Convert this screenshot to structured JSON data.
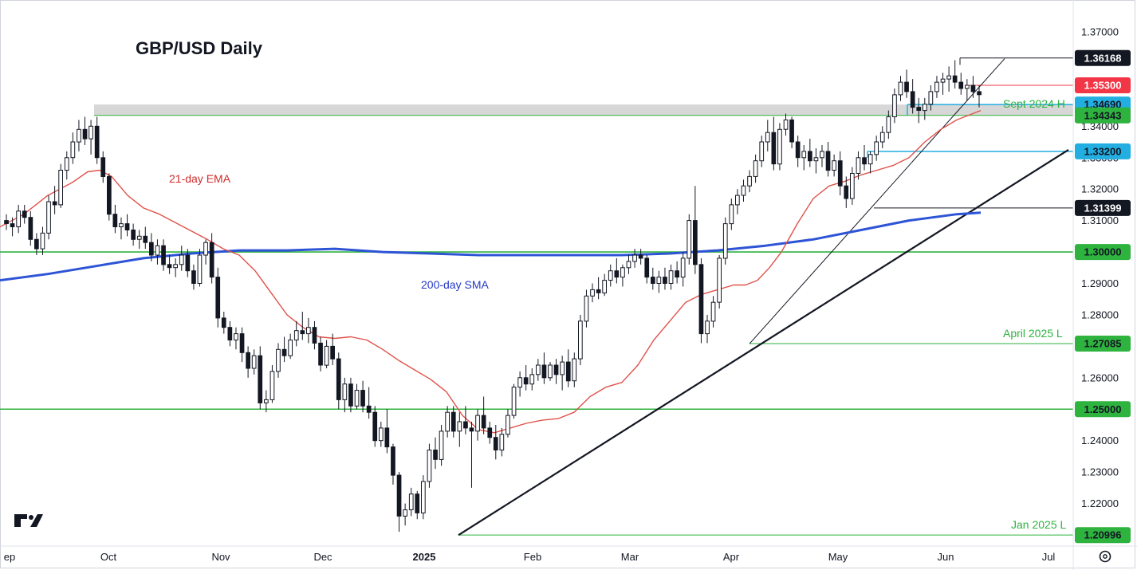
{
  "chart_data": {
    "type": "candlestick",
    "title": "GBP/USD Daily",
    "x_axis_labels": [
      "ep",
      "Oct",
      "Nov",
      "Dec",
      "2025",
      "Feb",
      "Mar",
      "Apr",
      "May",
      "Jun",
      "Jul"
    ],
    "y_axis_ticks": [
      "1.37000",
      "1.34000",
      "1.33000",
      "1.32000",
      "1.31000",
      "1.29000",
      "1.28000",
      "1.26000",
      "1.24000",
      "1.23000",
      "1.22000"
    ],
    "ylim": [
      1.2045,
      1.3735
    ],
    "series": [
      {
        "name": "21-day EMA",
        "color": "#e0524a"
      },
      {
        "name": "200-day SMA",
        "color": "#2e54d6"
      }
    ],
    "ema_points": [
      [
        0,
        1.308
      ],
      [
        30,
        1.312
      ],
      [
        60,
        1.318
      ],
      [
        90,
        1.322
      ],
      [
        110,
        1.3255
      ],
      [
        125,
        1.326
      ],
      [
        140,
        1.324
      ],
      [
        160,
        1.318
      ],
      [
        180,
        1.314
      ],
      [
        200,
        1.312
      ],
      [
        230,
        1.308
      ],
      [
        260,
        1.304
      ],
      [
        280,
        1.301
      ],
      [
        300,
        1.299
      ],
      [
        320,
        1.294
      ],
      [
        340,
        1.287
      ],
      [
        360,
        1.28
      ],
      [
        380,
        1.276
      ],
      [
        400,
        1.273
      ],
      [
        420,
        1.2725
      ],
      [
        440,
        1.273
      ],
      [
        460,
        1.272
      ],
      [
        480,
        1.269
      ],
      [
        500,
        1.2655
      ],
      [
        520,
        1.2625
      ],
      [
        540,
        1.2595
      ],
      [
        560,
        1.2555
      ],
      [
        580,
        1.248
      ],
      [
        600,
        1.2435
      ],
      [
        620,
        1.2425
      ],
      [
        640,
        1.244
      ],
      [
        660,
        1.2455
      ],
      [
        680,
        1.2465
      ],
      [
        700,
        1.247
      ],
      [
        720,
        1.249
      ],
      [
        740,
        1.254
      ],
      [
        760,
        1.257
      ],
      [
        780,
        1.2585
      ],
      [
        800,
        1.264
      ],
      [
        820,
        1.272
      ],
      [
        840,
        1.278
      ],
      [
        860,
        1.284
      ],
      [
        880,
        1.2865
      ],
      [
        900,
        1.288
      ],
      [
        920,
        1.2895
      ],
      [
        935,
        1.2895
      ],
      [
        950,
        1.291
      ],
      [
        965,
        1.295
      ],
      [
        980,
        1.3
      ],
      [
        1000,
        1.309
      ],
      [
        1020,
        1.317
      ],
      [
        1040,
        1.321
      ],
      [
        1060,
        1.3225
      ],
      [
        1080,
        1.3245
      ],
      [
        1100,
        1.326
      ],
      [
        1120,
        1.3275
      ],
      [
        1140,
        1.33
      ],
      [
        1160,
        1.335
      ],
      [
        1180,
        1.339
      ],
      [
        1200,
        1.342
      ],
      [
        1215,
        1.3435
      ],
      [
        1230,
        1.345
      ]
    ],
    "sma_points": [
      [
        0,
        1.291
      ],
      [
        60,
        1.293
      ],
      [
        120,
        1.2955
      ],
      [
        180,
        1.298
      ],
      [
        240,
        1.2995
      ],
      [
        300,
        1.3005
      ],
      [
        360,
        1.3005
      ],
      [
        420,
        1.301
      ],
      [
        480,
        1.3
      ],
      [
        540,
        1.2995
      ],
      [
        600,
        1.299
      ],
      [
        660,
        1.299
      ],
      [
        720,
        1.299
      ],
      [
        780,
        1.299
      ],
      [
        840,
        1.2995
      ],
      [
        900,
        1.3005
      ],
      [
        960,
        1.302
      ],
      [
        1020,
        1.304
      ],
      [
        1080,
        1.307
      ],
      [
        1140,
        1.31
      ],
      [
        1200,
        1.312
      ],
      [
        1230,
        1.3125
      ]
    ],
    "candles": [
      [
        1.31,
        1.312,
        1.307,
        1.309
      ],
      [
        1.309,
        1.311,
        1.305,
        1.308
      ],
      [
        1.308,
        1.315,
        1.306,
        1.313
      ],
      [
        1.313,
        1.315,
        1.309,
        1.311
      ],
      [
        1.311,
        1.313,
        1.302,
        1.304
      ],
      [
        1.304,
        1.306,
        1.299,
        1.301
      ],
      [
        1.301,
        1.308,
        1.299,
        1.306
      ],
      [
        1.306,
        1.318,
        1.304,
        1.316
      ],
      [
        1.316,
        1.321,
        1.312,
        1.315
      ],
      [
        1.315,
        1.328,
        1.314,
        1.326
      ],
      [
        1.326,
        1.332,
        1.323,
        1.33
      ],
      [
        1.33,
        1.338,
        1.328,
        1.335
      ],
      [
        1.335,
        1.342,
        1.332,
        1.339
      ],
      [
        1.339,
        1.343,
        1.334,
        1.336
      ],
      [
        1.336,
        1.342,
        1.331,
        1.34
      ],
      [
        1.34,
        1.343,
        1.328,
        1.33
      ],
      [
        1.33,
        1.332,
        1.322,
        1.324
      ],
      [
        1.324,
        1.325,
        1.31,
        1.312
      ],
      [
        1.312,
        1.315,
        1.306,
        1.308
      ],
      [
        1.308,
        1.311,
        1.304,
        1.309
      ],
      [
        1.309,
        1.312,
        1.305,
        1.307
      ],
      [
        1.307,
        1.309,
        1.302,
        1.304
      ],
      [
        1.304,
        1.307,
        1.301,
        1.305
      ],
      [
        1.305,
        1.308,
        1.301,
        1.303
      ],
      [
        1.303,
        1.306,
        1.297,
        1.299
      ],
      [
        1.299,
        1.304,
        1.296,
        1.302
      ],
      [
        1.302,
        1.304,
        1.294,
        1.296
      ],
      [
        1.296,
        1.299,
        1.293,
        1.295
      ],
      [
        1.295,
        1.298,
        1.292,
        1.296
      ],
      [
        1.296,
        1.302,
        1.294,
        1.299
      ],
      [
        1.299,
        1.301,
        1.292,
        1.294
      ],
      [
        1.294,
        1.296,
        1.288,
        1.29
      ],
      [
        1.29,
        1.301,
        1.289,
        1.299
      ],
      [
        1.299,
        1.304,
        1.296,
        1.303
      ],
      [
        1.303,
        1.306,
        1.29,
        1.292
      ],
      [
        1.292,
        1.295,
        1.276,
        1.279
      ],
      [
        1.279,
        1.281,
        1.274,
        1.276
      ],
      [
        1.276,
        1.278,
        1.27,
        1.272
      ],
      [
        1.272,
        1.276,
        1.269,
        1.274
      ],
      [
        1.274,
        1.276,
        1.265,
        1.268
      ],
      [
        1.268,
        1.27,
        1.26,
        1.263
      ],
      [
        1.263,
        1.269,
        1.261,
        1.267
      ],
      [
        1.267,
        1.27,
        1.25,
        1.252
      ],
      [
        1.252,
        1.256,
        1.249,
        1.253
      ],
      [
        1.253,
        1.264,
        1.252,
        1.262
      ],
      [
        1.262,
        1.271,
        1.26,
        1.269
      ],
      [
        1.269,
        1.273,
        1.265,
        1.267
      ],
      [
        1.267,
        1.274,
        1.266,
        1.272
      ],
      [
        1.272,
        1.278,
        1.27,
        1.275
      ],
      [
        1.275,
        1.281,
        1.272,
        1.274
      ],
      [
        1.274,
        1.279,
        1.271,
        1.276
      ],
      [
        1.276,
        1.278,
        1.269,
        1.271
      ],
      [
        1.271,
        1.273,
        1.262,
        1.264
      ],
      [
        1.264,
        1.272,
        1.263,
        1.27
      ],
      [
        1.27,
        1.274,
        1.264,
        1.266
      ],
      [
        1.266,
        1.268,
        1.25,
        1.253
      ],
      [
        1.253,
        1.26,
        1.249,
        1.258
      ],
      [
        1.258,
        1.26,
        1.249,
        1.251
      ],
      [
        1.251,
        1.258,
        1.25,
        1.256
      ],
      [
        1.256,
        1.259,
        1.249,
        1.251
      ],
      [
        1.251,
        1.257,
        1.247,
        1.249
      ],
      [
        1.249,
        1.251,
        1.238,
        1.24
      ],
      [
        1.24,
        1.246,
        1.238,
        1.244
      ],
      [
        1.244,
        1.25,
        1.236,
        1.238
      ],
      [
        1.238,
        1.239,
        1.226,
        1.229
      ],
      [
        1.229,
        1.23,
        1.211,
        1.216
      ],
      [
        1.216,
        1.22,
        1.213,
        1.218
      ],
      [
        1.218,
        1.225,
        1.216,
        1.223
      ],
      [
        1.223,
        1.224,
        1.215,
        1.217
      ],
      [
        1.217,
        1.229,
        1.215,
        1.227
      ],
      [
        1.227,
        1.239,
        1.225,
        1.237
      ],
      [
        1.237,
        1.241,
        1.231,
        1.234
      ],
      [
        1.234,
        1.245,
        1.232,
        1.243
      ],
      [
        1.243,
        1.251,
        1.241,
        1.249
      ],
      [
        1.249,
        1.251,
        1.241,
        1.243
      ],
      [
        1.243,
        1.249,
        1.238,
        1.246
      ],
      [
        1.246,
        1.251,
        1.242,
        1.244
      ],
      [
        1.244,
        1.246,
        1.225,
        1.243
      ],
      [
        1.243,
        1.25,
        1.24,
        1.248
      ],
      [
        1.248,
        1.254,
        1.242,
        1.244
      ],
      [
        1.244,
        1.246,
        1.239,
        1.241
      ],
      [
        1.241,
        1.245,
        1.234,
        1.237
      ],
      [
        1.237,
        1.244,
        1.235,
        1.242
      ],
      [
        1.242,
        1.25,
        1.241,
        1.248
      ],
      [
        1.248,
        1.258,
        1.247,
        1.257
      ],
      [
        1.257,
        1.262,
        1.254,
        1.26
      ],
      [
        1.26,
        1.264,
        1.256,
        1.258
      ],
      [
        1.258,
        1.263,
        1.256,
        1.261
      ],
      [
        1.261,
        1.266,
        1.259,
        1.264
      ],
      [
        1.264,
        1.268,
        1.258,
        1.26
      ],
      [
        1.26,
        1.265,
        1.259,
        1.264
      ],
      [
        1.264,
        1.266,
        1.258,
        1.261
      ],
      [
        1.261,
        1.267,
        1.256,
        1.265
      ],
      [
        1.265,
        1.269,
        1.257,
        1.259
      ],
      [
        1.259,
        1.268,
        1.257,
        1.266
      ],
      [
        1.266,
        1.28,
        1.264,
        1.278
      ],
      [
        1.278,
        1.288,
        1.276,
        1.286
      ],
      [
        1.286,
        1.29,
        1.284,
        1.288
      ],
      [
        1.288,
        1.292,
        1.285,
        1.287
      ],
      [
        1.287,
        1.293,
        1.286,
        1.291
      ],
      [
        1.291,
        1.296,
        1.289,
        1.294
      ],
      [
        1.294,
        1.298,
        1.29,
        1.292
      ],
      [
        1.292,
        1.296,
        1.289,
        1.295
      ],
      [
        1.295,
        1.299,
        1.293,
        1.297
      ],
      [
        1.297,
        1.301,
        1.295,
        1.299
      ],
      [
        1.299,
        1.301,
        1.296,
        1.298
      ],
      [
        1.298,
        1.299,
        1.29,
        1.292
      ],
      [
        1.292,
        1.295,
        1.288,
        1.29
      ],
      [
        1.29,
        1.294,
        1.287,
        1.292
      ],
      [
        1.292,
        1.295,
        1.288,
        1.29
      ],
      [
        1.29,
        1.296,
        1.288,
        1.294
      ],
      [
        1.294,
        1.297,
        1.29,
        1.292
      ],
      [
        1.292,
        1.3,
        1.289,
        1.298
      ],
      [
        1.298,
        1.312,
        1.296,
        1.31
      ],
      [
        1.31,
        1.321,
        1.293,
        1.296
      ],
      [
        1.296,
        1.298,
        1.271,
        1.274
      ],
      [
        1.274,
        1.28,
        1.271,
        1.278
      ],
      [
        1.278,
        1.286,
        1.276,
        1.284
      ],
      [
        1.284,
        1.299,
        1.282,
        1.298
      ],
      [
        1.298,
        1.311,
        1.296,
        1.309
      ],
      [
        1.309,
        1.317,
        1.307,
        1.315
      ],
      [
        1.315,
        1.32,
        1.312,
        1.318
      ],
      [
        1.318,
        1.323,
        1.316,
        1.321
      ],
      [
        1.321,
        1.326,
        1.319,
        1.324
      ],
      [
        1.324,
        1.331,
        1.322,
        1.329
      ],
      [
        1.329,
        1.337,
        1.327,
        1.335
      ],
      [
        1.335,
        1.342,
        1.332,
        1.338
      ],
      [
        1.338,
        1.343,
        1.326,
        1.328
      ],
      [
        1.328,
        1.341,
        1.326,
        1.339
      ],
      [
        1.339,
        1.344,
        1.337,
        1.342
      ],
      [
        1.342,
        1.343,
        1.333,
        1.335
      ],
      [
        1.335,
        1.337,
        1.327,
        1.33
      ],
      [
        1.33,
        1.334,
        1.326,
        1.332
      ],
      [
        1.332,
        1.336,
        1.327,
        1.329
      ],
      [
        1.329,
        1.333,
        1.325,
        1.33
      ],
      [
        1.33,
        1.334,
        1.327,
        1.332
      ],
      [
        1.332,
        1.335,
        1.324,
        1.326
      ],
      [
        1.326,
        1.331,
        1.324,
        1.329
      ],
      [
        1.329,
        1.332,
        1.318,
        1.321
      ],
      [
        1.321,
        1.324,
        1.314,
        1.317
      ],
      [
        1.317,
        1.327,
        1.315,
        1.325
      ],
      [
        1.325,
        1.332,
        1.323,
        1.33
      ],
      [
        1.33,
        1.334,
        1.326,
        1.328
      ],
      [
        1.328,
        1.332,
        1.325,
        1.331
      ],
      [
        1.331,
        1.337,
        1.329,
        1.335
      ],
      [
        1.335,
        1.34,
        1.333,
        1.338
      ],
      [
        1.338,
        1.345,
        1.336,
        1.343
      ],
      [
        1.343,
        1.352,
        1.341,
        1.35
      ],
      [
        1.35,
        1.356,
        1.348,
        1.354
      ],
      [
        1.354,
        1.358,
        1.349,
        1.351
      ],
      [
        1.351,
        1.355,
        1.344,
        1.346
      ],
      [
        1.346,
        1.349,
        1.341,
        1.345
      ],
      [
        1.345,
        1.349,
        1.342,
        1.347
      ],
      [
        1.347,
        1.353,
        1.345,
        1.351
      ],
      [
        1.351,
        1.356,
        1.349,
        1.354
      ],
      [
        1.354,
        1.357,
        1.35,
        1.355
      ],
      [
        1.355,
        1.359,
        1.351,
        1.356
      ],
      [
        1.356,
        1.361,
        1.352,
        1.354
      ],
      [
        1.354,
        1.357,
        1.35,
        1.352
      ],
      [
        1.352,
        1.355,
        1.348,
        1.353
      ],
      [
        1.353,
        1.356,
        1.349,
        1.351
      ],
      [
        1.351,
        1.353,
        1.346,
        1.35
      ]
    ]
  },
  "title": "GBP/USD Daily",
  "annotations": {
    "ema_label": "21-day EMA",
    "sma_label": "200-day SMA",
    "sept_label": "Sept 2024 H",
    "april_label": "April 2025 L",
    "jan_label": "Jan 2025 L"
  },
  "price_tags": [
    {
      "text": "1.36168",
      "value": 1.36168,
      "bg": "#131722",
      "fg": "#ffffff"
    },
    {
      "text": "1.35300",
      "value": 1.353,
      "bg": "#f23645",
      "fg": "#ffffff"
    },
    {
      "text": "1.34690",
      "value": 1.3469,
      "bg": "#22aee0",
      "fg": "#131722"
    },
    {
      "text": "1.34343",
      "value": 1.34343,
      "bg": "#2eb33f",
      "fg": "#131722"
    },
    {
      "text": "1.33200",
      "value": 1.332,
      "bg": "#22aee0",
      "fg": "#131722"
    },
    {
      "text": "1.31399",
      "value": 1.31399,
      "bg": "#131722",
      "fg": "#ffffff"
    },
    {
      "text": "1.30000",
      "value": 1.3,
      "bg": "#2eb33f",
      "fg": "#131722"
    },
    {
      "text": "1.27085",
      "value": 1.27085,
      "bg": "#2eb33f",
      "fg": "#131722"
    },
    {
      "text": "1.25000",
      "value": 1.25,
      "bg": "#2eb33f",
      "fg": "#131722"
    },
    {
      "text": "1.20996",
      "value": 1.20996,
      "bg": "#2eb33f",
      "fg": "#131722"
    }
  ],
  "horizontal_levels": [
    1.3,
    1.25
  ],
  "colors": {
    "ema": "#e0524a",
    "sma": "#2e54d6",
    "level_green": "#2eb33f",
    "level_cyan": "#22aee0",
    "zone_gray": "#d0d0d0",
    "candle": "#131722"
  },
  "icons": {
    "logo": "tradingview-logo-icon",
    "settings": "gear-icon"
  }
}
